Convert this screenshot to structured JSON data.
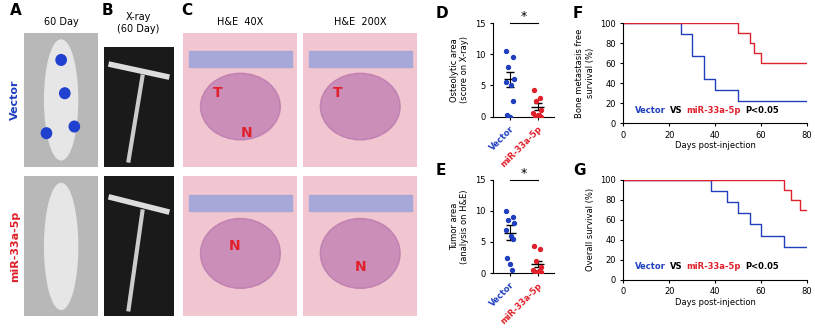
{
  "panels": {
    "A": {
      "label": "A",
      "header": "60 Day",
      "rows": [
        {
          "label": "Vector",
          "color": "#1f3fbf"
        },
        {
          "label": "miR-33a-5p",
          "color": "#e0202a"
        }
      ]
    },
    "B": {
      "label": "B",
      "header": "X-ray\n(60 Day)"
    },
    "C": {
      "label": "C",
      "headers": [
        "H&E  40X",
        "H&E  200X"
      ],
      "marks": [
        [
          "T",
          "N"
        ],
        [
          "T"
        ],
        [
          "N"
        ],
        [
          "N"
        ]
      ]
    }
  },
  "chart_data": [
    {
      "panel": "D",
      "type": "scatter",
      "ylabel": "Osteolytic area\n(score on X-ray)",
      "categories": [
        "Vector",
        "miR-33a-5p"
      ],
      "colors": [
        "#1f3fbf",
        "#e0202a"
      ],
      "points": [
        [
          10.5,
          9.5,
          8,
          6,
          5.5,
          5,
          2.5,
          0.2,
          0
        ],
        [
          4.3,
          3,
          2.5,
          1,
          0.5,
          0.3,
          0,
          0,
          0.2
        ]
      ],
      "mean": [
        6,
        1.6
      ],
      "sem": [
        1.2,
        0.6
      ],
      "ylim": [
        0,
        15
      ],
      "yticks": [
        0,
        5,
        10,
        15
      ],
      "significance": "*"
    },
    {
      "panel": "E",
      "type": "scatter",
      "ylabel": "Tumor area\n(analysis on H&E)",
      "categories": [
        "Vector",
        "miR-33a-5p"
      ],
      "colors": [
        "#1f3fbf",
        "#e0202a"
      ],
      "points": [
        [
          10,
          9,
          8.5,
          8,
          7,
          6,
          5.5,
          2.5,
          1.5,
          0.5
        ],
        [
          4.3,
          3.8,
          2,
          1,
          0.5,
          0.3,
          0.2,
          0.1,
          0
        ]
      ],
      "mean": [
        6.5,
        1.5
      ],
      "sem": [
        1.2,
        0.5
      ],
      "ylim": [
        0,
        15
      ],
      "yticks": [
        0,
        5,
        10,
        15
      ],
      "significance": "*"
    },
    {
      "panel": "F",
      "type": "line",
      "line_style": "steps",
      "xlabel": "Days post-injection",
      "ylabel": "Bone metastasis free\nsurvival (%)",
      "xlim": [
        0,
        80
      ],
      "xticks": [
        0,
        20,
        40,
        60,
        80
      ],
      "ylim": [
        0,
        100
      ],
      "yticks": [
        0,
        20,
        40,
        60,
        80,
        100
      ],
      "series": [
        {
          "color": "#1f3fbf",
          "x": [
            0,
            25,
            30,
            35,
            40,
            50,
            80
          ],
          "values": [
            100,
            89,
            67,
            44,
            33,
            22,
            22
          ]
        },
        {
          "color": "#e0202a",
          "x": [
            0,
            50,
            55,
            57,
            60,
            80
          ],
          "values": [
            100,
            90,
            80,
            70,
            60,
            60
          ]
        }
      ],
      "annotation": [
        {
          "text": "Vector",
          "color": "#1f3fbf"
        },
        {
          "text": "VS",
          "color": "#000000"
        },
        {
          "text": "miR-33a-5p",
          "color": "#e0202a"
        },
        {
          "text": "P<0.05",
          "color": "#000000"
        }
      ]
    },
    {
      "panel": "G",
      "type": "line",
      "line_style": "steps",
      "xlabel": "Days post-injection",
      "ylabel": "Overall survival (%)",
      "xlim": [
        0,
        80
      ],
      "xticks": [
        0,
        20,
        40,
        60,
        80
      ],
      "ylim": [
        0,
        100
      ],
      "yticks": [
        0,
        20,
        40,
        60,
        80,
        100
      ],
      "series": [
        {
          "color": "#1f3fbf",
          "x": [
            0,
            38,
            45,
            50,
            55,
            60,
            70,
            80
          ],
          "values": [
            100,
            89,
            78,
            67,
            56,
            44,
            33,
            33
          ]
        },
        {
          "color": "#e0202a",
          "x": [
            0,
            70,
            73,
            77,
            80
          ],
          "values": [
            100,
            90,
            80,
            70,
            70
          ]
        }
      ],
      "annotation": [
        {
          "text": "Vector",
          "color": "#1f3fbf"
        },
        {
          "text": "VS",
          "color": "#000000"
        },
        {
          "text": "miR-33a-5p",
          "color": "#e0202a"
        },
        {
          "text": "P<0.05",
          "color": "#000000"
        }
      ]
    }
  ]
}
